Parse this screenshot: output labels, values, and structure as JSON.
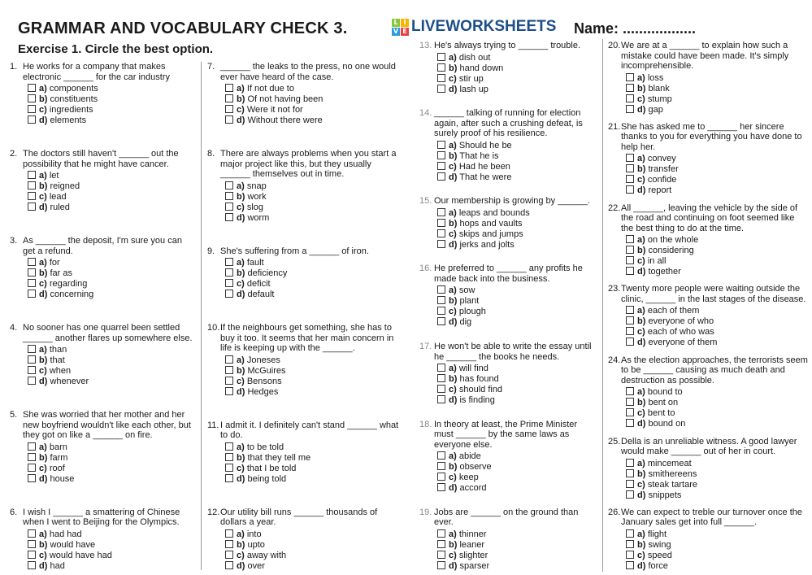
{
  "header": {
    "title": "GRAMMAR AND VOCABULARY CHECK 3.",
    "name_label": "Name: ..................",
    "exercise": "Exercise 1. Circle the best option."
  },
  "questions": [
    {
      "num": "1.",
      "text": "He works for a company that makes electronic ______ for the car industry",
      "options": [
        [
          "a)",
          "components"
        ],
        [
          "b)",
          "constituents"
        ],
        [
          "c)",
          "ingredients"
        ],
        [
          "d)",
          "elements"
        ]
      ]
    },
    {
      "num": "2.",
      "text": "The doctors still haven't ______ out the possibility that he might have cancer.",
      "options": [
        [
          "a)",
          "let"
        ],
        [
          "b)",
          "reigned"
        ],
        [
          "c)",
          "lead"
        ],
        [
          "d)",
          "ruled"
        ]
      ]
    },
    {
      "num": "3.",
      "text": "As ______ the deposit, I'm sure you can get a refund.",
      "options": [
        [
          "a)",
          "for"
        ],
        [
          "b)",
          "far as"
        ],
        [
          "c)",
          "regarding"
        ],
        [
          "d)",
          "concerning"
        ]
      ]
    },
    {
      "num": "4.",
      "text": "No sooner has one quarrel been settled ______ another flares up somewhere else.",
      "options": [
        [
          "a)",
          "than"
        ],
        [
          "b)",
          "that"
        ],
        [
          "c)",
          "when"
        ],
        [
          "d)",
          "whenever"
        ]
      ]
    },
    {
      "num": "5.",
      "text": "She was worried that her mother and her new boyfriend wouldn't like each other, but they got on like a ______ on fire.",
      "options": [
        [
          "a)",
          "barn"
        ],
        [
          "b)",
          "farm"
        ],
        [
          "c)",
          "roof"
        ],
        [
          "d)",
          "house"
        ]
      ]
    },
    {
      "num": "6.",
      "text": "I wish I ______ a smattering of Chinese when I went to Beijing for the Olympics.",
      "options": [
        [
          "a)",
          "had had"
        ],
        [
          "b)",
          "would have"
        ],
        [
          "c)",
          "would have had"
        ],
        [
          "d)",
          "had"
        ]
      ]
    },
    {
      "num": "7.",
      "text": "______ the leaks to the press, no one would ever have heard of the case.",
      "options": [
        [
          "a)",
          "If not due to"
        ],
        [
          "b)",
          "Of not having been"
        ],
        [
          "c)",
          "Were it not for"
        ],
        [
          "d)",
          "Without there were"
        ]
      ]
    },
    {
      "num": "8.",
      "text": "There are always problems when you start a major project like this, but they usually ______ themselves out in time.",
      "options": [
        [
          "a)",
          "snap"
        ],
        [
          "b)",
          "work"
        ],
        [
          "c)",
          "slog"
        ],
        [
          "d)",
          "worm"
        ]
      ]
    },
    {
      "num": "9.",
      "text": "She's suffering from a ______ of iron.",
      "options": [
        [
          "a)",
          "fault"
        ],
        [
          "b)",
          "deficiency"
        ],
        [
          "c)",
          "deficit"
        ],
        [
          "d)",
          "default"
        ]
      ]
    },
    {
      "num": "10.",
      "text": "If the neighbours get something, she has to buy it too. It seems that her main concern in life is keeping up with the ______.",
      "options": [
        [
          "a)",
          "Joneses"
        ],
        [
          "b)",
          "McGuires"
        ],
        [
          "c)",
          "Bensons"
        ],
        [
          "d)",
          "Hedges"
        ]
      ]
    },
    {
      "num": "11.",
      "text": "I admit it. I definitely can't stand ______ what to do.",
      "options": [
        [
          "a)",
          "to be told"
        ],
        [
          "b)",
          "that they tell me"
        ],
        [
          "c)",
          "that I be told"
        ],
        [
          "d)",
          "being told"
        ]
      ]
    },
    {
      "num": "12.",
      "text": "Our utility bill runs ______ thousands of dollars a year.",
      "options": [
        [
          "a)",
          "into"
        ],
        [
          "b)",
          "upto"
        ],
        [
          "c)",
          "away with"
        ],
        [
          "d)",
          "over"
        ]
      ]
    },
    {
      "num": "13.",
      "text": "He's always trying to ______ trouble.",
      "options": [
        [
          "a)",
          "dish out"
        ],
        [
          "b)",
          "hand down"
        ],
        [
          "c)",
          "stir up"
        ],
        [
          "d)",
          "lash up"
        ]
      ]
    },
    {
      "num": "14.",
      "text": "______ talking of running for election again, after such a crushing defeat, is surely proof of his resilience.",
      "options": [
        [
          "a)",
          "Should he be"
        ],
        [
          "b)",
          "That he is"
        ],
        [
          "c)",
          "Had he been"
        ],
        [
          "d)",
          "That he were"
        ]
      ]
    },
    {
      "num": "15.",
      "text": "Our membership is growing by ______.",
      "options": [
        [
          "a)",
          "leaps and bounds"
        ],
        [
          "b)",
          "hops and vaults"
        ],
        [
          "c)",
          "skips and jumps"
        ],
        [
          "d)",
          "jerks and jolts"
        ]
      ]
    },
    {
      "num": "16.",
      "text": "He preferred to ______ any profits he made back into the business.",
      "options": [
        [
          "a)",
          "sow"
        ],
        [
          "b)",
          "plant"
        ],
        [
          "c)",
          "plough"
        ],
        [
          "d)",
          "dig"
        ]
      ]
    },
    {
      "num": "17.",
      "text": "He won't be able to write the essay until he ______ the books he needs.",
      "options": [
        [
          "a)",
          "will find"
        ],
        [
          "b)",
          "has found"
        ],
        [
          "c)",
          "should find"
        ],
        [
          "d)",
          "is finding"
        ]
      ]
    },
    {
      "num": "18.",
      "text": "In theory at least, the Prime Minister must ______ by the same laws as everyone else.",
      "options": [
        [
          "a)",
          "abide"
        ],
        [
          "b)",
          "observe"
        ],
        [
          "c)",
          "keep"
        ],
        [
          "d)",
          "accord"
        ]
      ]
    },
    {
      "num": "19.",
      "text": "Jobs are ______ on the ground than ever.",
      "options": [
        [
          "a)",
          "thinner"
        ],
        [
          "b)",
          "leaner"
        ],
        [
          "c)",
          "slighter"
        ],
        [
          "d)",
          "sparser"
        ]
      ]
    },
    {
      "num": "20.",
      "text": "We are at a ______ to explain how such a mistake could have been made. It's simply incomprehensible.",
      "options": [
        [
          "a)",
          "loss"
        ],
        [
          "b)",
          "blank"
        ],
        [
          "c)",
          "stump"
        ],
        [
          "d)",
          "gap"
        ]
      ]
    },
    {
      "num": "21.",
      "text": "She has asked me to ______ her sincere thanks to you for everything you have done to help her.",
      "options": [
        [
          "a)",
          "convey"
        ],
        [
          "b)",
          "transfer"
        ],
        [
          "c)",
          "confide"
        ],
        [
          "d)",
          "report"
        ]
      ]
    },
    {
      "num": "22.",
      "text": "All ______, leaving the vehicle by the side of the road and continuing on foot seemed like the best thing to do at the time.",
      "options": [
        [
          "a)",
          "on the whole"
        ],
        [
          "b)",
          "considering"
        ],
        [
          "c)",
          "in all"
        ],
        [
          "d)",
          "together"
        ]
      ]
    },
    {
      "num": "23.",
      "text": "Twenty more people were waiting outside the clinic, ______ in the last stages of the disease.",
      "options": [
        [
          "a)",
          "each of them"
        ],
        [
          "b)",
          "everyone of who"
        ],
        [
          "c)",
          "each of who was"
        ],
        [
          "d)",
          "everyone of them"
        ]
      ]
    },
    {
      "num": "24.",
      "text": "As the election approaches, the terrorists seem to be ______ causing as much death and destruction as possible.",
      "options": [
        [
          "a)",
          "bound to"
        ],
        [
          "b)",
          "bent on"
        ],
        [
          "c)",
          "bent to"
        ],
        [
          "d)",
          "bound on"
        ]
      ]
    },
    {
      "num": "25.",
      "text": "Della is an unreliable witness. A good lawyer would make ______ out of her in court.",
      "options": [
        [
          "a)",
          "mincemeat"
        ],
        [
          "b)",
          "smithereens"
        ],
        [
          "c)",
          "steak tartare"
        ],
        [
          "d)",
          "snippets"
        ]
      ]
    },
    {
      "num": "26.",
      "text": "We can expect to treble our turnover once the January sales get into full ______.",
      "options": [
        [
          "a)",
          "flight"
        ],
        [
          "b)",
          "swing"
        ],
        [
          "c)",
          "speed"
        ],
        [
          "d)",
          "force"
        ]
      ]
    }
  ],
  "logo": {
    "tiles": [
      "L",
      "I",
      "V",
      "E"
    ],
    "text": "LIVEWORKSHEETS",
    "tile_colors": [
      "#8cc63f",
      "#f7b500",
      "#2d9cdb",
      "#e8413c"
    ],
    "brand_color": "#1c4e8a"
  }
}
